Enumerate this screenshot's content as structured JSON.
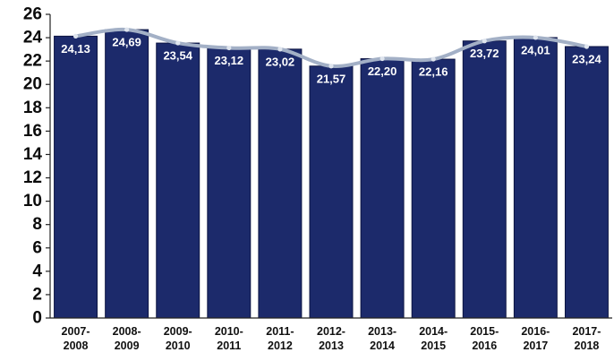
{
  "chart_data": {
    "type": "bar",
    "categories": [
      [
        "2007-",
        "2008"
      ],
      [
        "2008-",
        "2009"
      ],
      [
        "2009-",
        "2010"
      ],
      [
        "2010-",
        "2011"
      ],
      [
        "2011-",
        "2012"
      ],
      [
        "2012-",
        "2013"
      ],
      [
        "2013-",
        "2014"
      ],
      [
        "2014-",
        "2015"
      ],
      [
        "2015-",
        "2016"
      ],
      [
        "2016-",
        "2017"
      ],
      [
        "2017-",
        "2018"
      ]
    ],
    "values": [
      24.13,
      24.69,
      23.54,
      23.12,
      23.02,
      21.57,
      22.2,
      22.16,
      23.72,
      24.01,
      23.24
    ],
    "data_labels": [
      "24,13",
      "24,69",
      "23,54",
      "23,12",
      "23,02",
      "21,57",
      "22,20",
      "22,16",
      "23,72",
      "24,01",
      "23,24"
    ],
    "yticks": [
      "0",
      "2",
      "4",
      "6",
      "8",
      "10",
      "12",
      "14",
      "16",
      "18",
      "20",
      "22",
      "24",
      "26"
    ],
    "ylim": [
      0,
      26
    ],
    "title": "",
    "xlabel": "",
    "ylabel": "",
    "grid": false,
    "overlay_line": true,
    "colors": {
      "bar": "#1c2a6b",
      "bar_edge": "#0c1442",
      "line": "#a3b0c6",
      "marker": "#dfe5ee",
      "axis": "#222222"
    }
  }
}
